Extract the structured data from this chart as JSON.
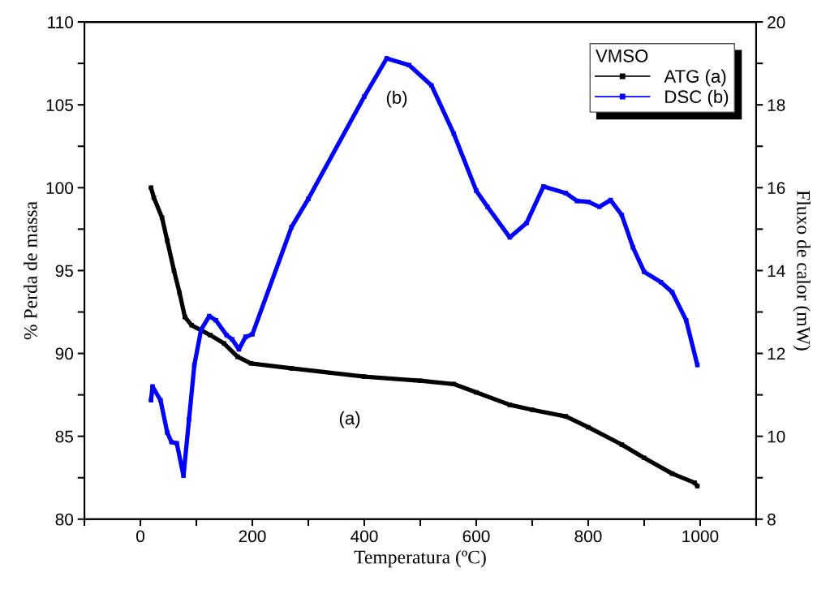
{
  "chart_data": {
    "type": "line",
    "xlabel": "Temperatura (ºC)",
    "ylabel": "% Perda de massa",
    "y2label": "Fluxo de calor (mW)",
    "legend_title": "VMSO",
    "legend": "top right",
    "marker": "square",
    "line_style": "solid",
    "grid": false,
    "xlim": [
      -100,
      1100
    ],
    "xticks": [
      {
        "value": -100,
        "label": null
      },
      0,
      {
        "value": 100,
        "label": null
      },
      200,
      {
        "value": 300,
        "label": null
      },
      400,
      {
        "value": 500,
        "label": null
      },
      600,
      {
        "value": 700,
        "label": null
      },
      800,
      {
        "value": 900,
        "label": null
      },
      1000,
      {
        "value": 1100,
        "label": null
      }
    ],
    "ylim": [
      80,
      110
    ],
    "yticks": [
      80,
      {
        "value": 82.5,
        "label": null
      },
      85,
      {
        "value": 87.5,
        "label": null
      },
      90,
      {
        "value": 92.5,
        "label": null
      },
      95,
      {
        "value": 97.5,
        "label": null
      },
      100,
      {
        "value": 102.5,
        "label": null
      },
      105,
      {
        "value": 107.5,
        "label": null
      },
      110
    ],
    "y2lim": [
      8,
      20
    ],
    "y2ticks": [
      8,
      {
        "value": 9,
        "label": null
      },
      10,
      {
        "value": 11,
        "label": null
      },
      12,
      {
        "value": 13,
        "label": null
      },
      14,
      {
        "value": 15,
        "label": null
      },
      16,
      {
        "value": 17,
        "label": null
      },
      18,
      {
        "value": 19,
        "label": null
      },
      20
    ],
    "annotations": [
      "(a)",
      "(b)"
    ],
    "series": [
      {
        "name": "ATG (a)",
        "color": "#000000",
        "x": [
          19,
          24,
          38.6,
          48,
          60,
          70,
          79.5,
          91.6,
          125,
          149.5,
          173.5,
          197.6,
          270,
          400,
          500,
          560,
          600,
          660,
          700,
          760,
          800,
          860,
          900,
          950,
          990,
          995
        ],
        "values": [
          100.0,
          99.4,
          98.2,
          96.8,
          95.0,
          93.65,
          92.2,
          91.7,
          91.1,
          90.6,
          89.8,
          89.4,
          89.1,
          88.6,
          88.35,
          88.15,
          87.65,
          86.9,
          86.6,
          86.2,
          85.55,
          84.5,
          83.7,
          82.75,
          82.2,
          82.0
        ]
      },
      {
        "name": "DSC (b)",
        "color": "#0000ff",
        "axis": "y2",
        "x": [
          19,
          21.7,
          36,
          48,
          55.5,
          65,
          77,
          87,
          96.4,
          108.4,
          123,
          135,
          154,
          164,
          176,
          188,
          200,
          270,
          300,
          400,
          440,
          480,
          520,
          560,
          600,
          620,
          660,
          690,
          720,
          760,
          780,
          800,
          820,
          840,
          860,
          880,
          900,
          930,
          950,
          975,
          995
        ],
        "values": [
          10.87,
          11.2,
          10.87,
          10.09,
          9.86,
          9.83,
          9.05,
          10.42,
          11.72,
          12.57,
          12.9,
          12.8,
          12.44,
          12.34,
          12.1,
          12.4,
          12.46,
          15.05,
          15.73,
          18.2,
          19.12,
          18.96,
          18.47,
          17.3,
          15.93,
          15.54,
          14.8,
          15.15,
          16.03,
          15.87,
          15.68,
          15.66,
          15.54,
          15.7,
          15.34,
          14.56,
          13.97,
          13.72,
          13.48,
          12.8,
          11.72
        ]
      }
    ]
  }
}
